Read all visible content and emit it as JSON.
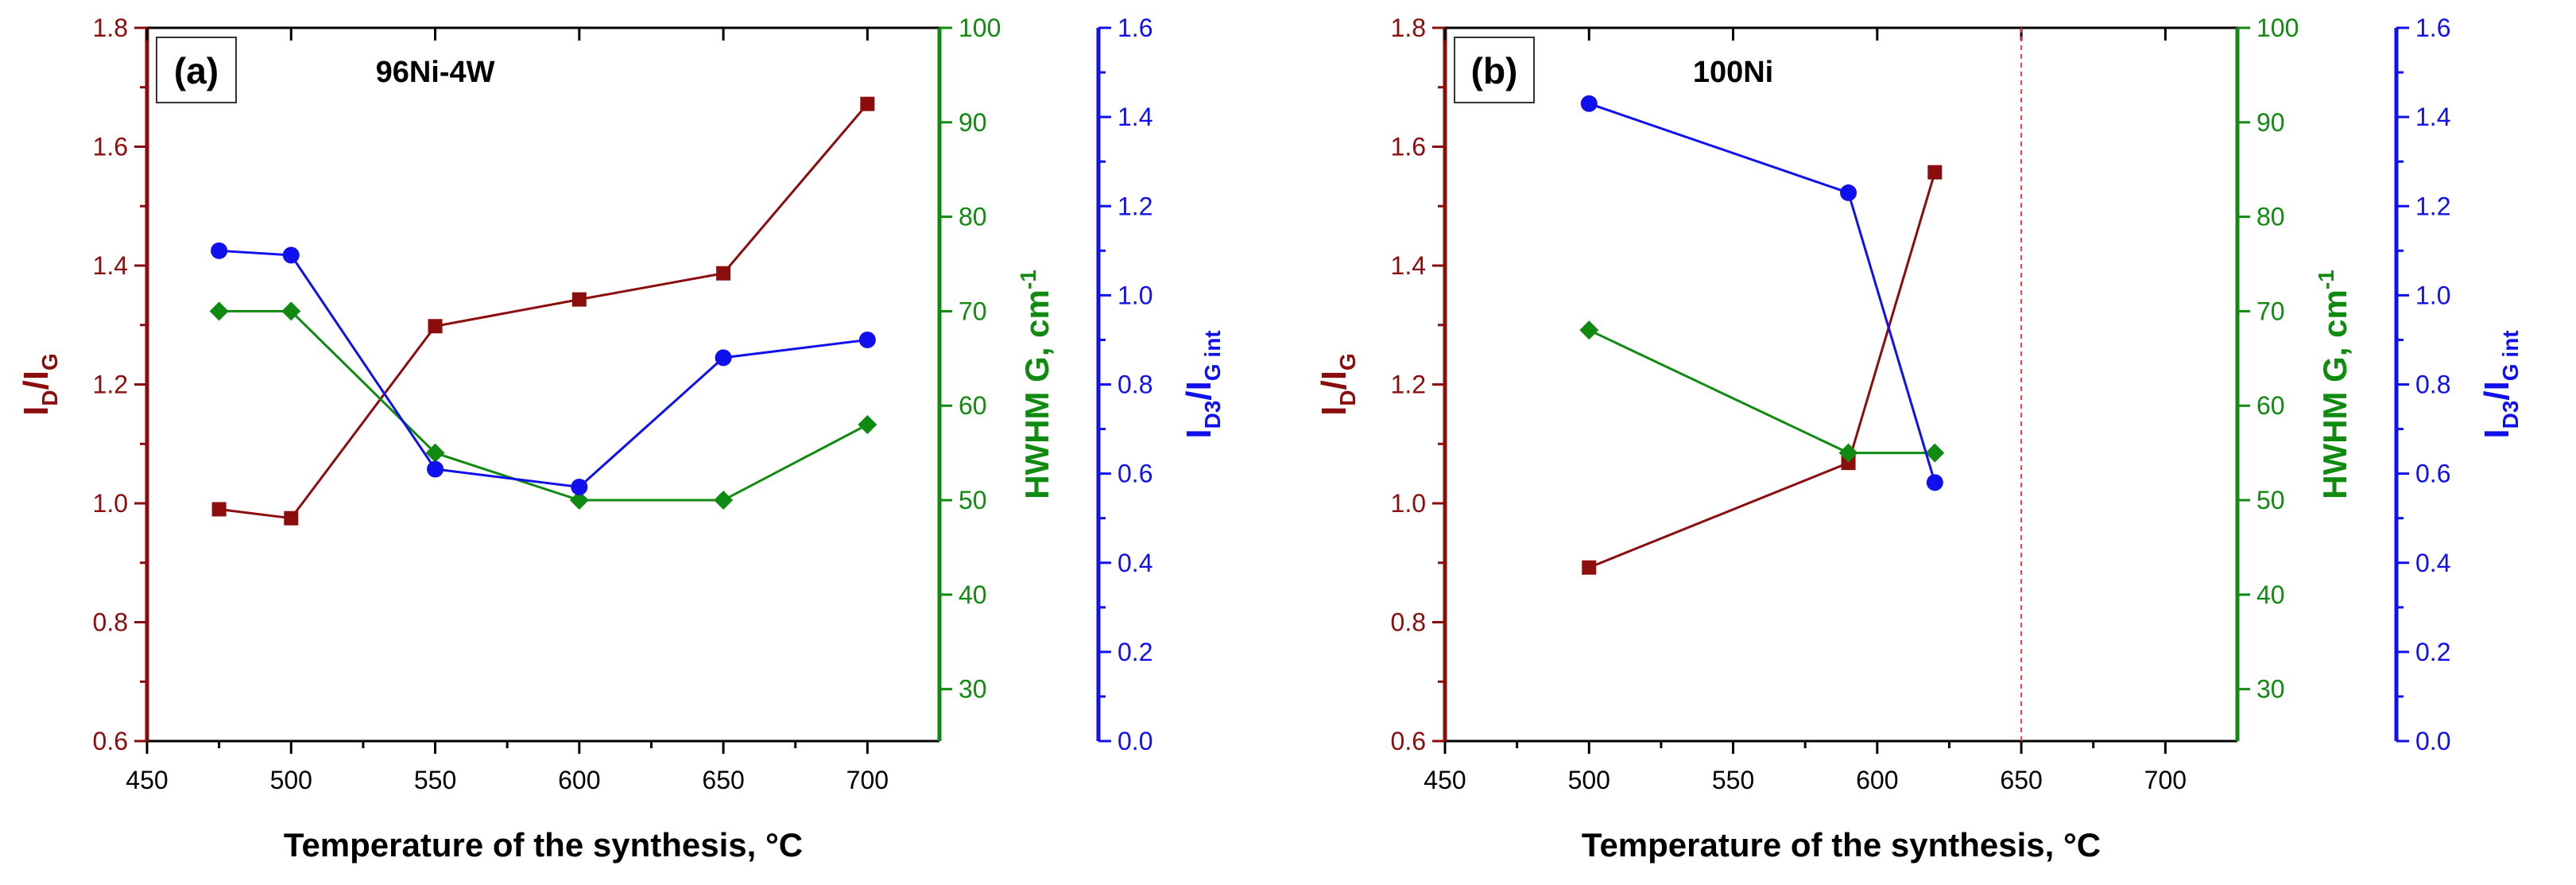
{
  "colors": {
    "id_ig": "#8b0d0d",
    "hwhm": "#118a11",
    "id3": "#1010ee",
    "axis": "#000000",
    "frame": "#8b0d0d",
    "vline": "#e84040"
  },
  "chart_data": [
    {
      "type": "line",
      "panel_label": "(a)",
      "title": "96Ni-4W",
      "xlabel": "Temperature of the synthesis, °C",
      "xlim": [
        450,
        725
      ],
      "xticks": [
        "450",
        "500",
        "550",
        "600",
        "650",
        "700"
      ],
      "y1": {
        "label_main": "I",
        "label_sub1": "D",
        "label_mid": "/I",
        "label_sub2": "G",
        "ylim": [
          0.6,
          1.8
        ],
        "ticks": [
          "0.6",
          "0.8",
          "1.0",
          "1.2",
          "1.4",
          "1.6",
          "1.8"
        ]
      },
      "y2": {
        "label": "HWHM G, cm",
        "label_sup": "-1",
        "ylim": [
          24.5,
          100
        ],
        "ticks": [
          "30",
          "40",
          "50",
          "60",
          "70",
          "80",
          "90",
          "100"
        ]
      },
      "y3": {
        "label_main": "I",
        "label_sub1": "D3",
        "label_mid": "/I",
        "label_sub2": "G int",
        "ylim": [
          0,
          1.6
        ],
        "ticks": [
          "0.0",
          "0.2",
          "0.4",
          "0.6",
          "0.8",
          "1.0",
          "1.2",
          "1.4",
          "1.6"
        ]
      },
      "series": [
        {
          "name": "ID/IG",
          "axis": "y1",
          "marker": "square",
          "x": [
            475,
            500,
            550,
            600,
            650,
            700
          ],
          "values": [
            0.99,
            0.975,
            1.298,
            1.343,
            1.387,
            1.672
          ]
        },
        {
          "name": "HWHM G",
          "axis": "y2",
          "marker": "diamond",
          "x": [
            475,
            500,
            550,
            600,
            650,
            700
          ],
          "values": [
            70,
            70,
            55,
            50,
            50,
            58
          ]
        },
        {
          "name": "ID3/IG int",
          "axis": "y3",
          "marker": "circle",
          "x": [
            475,
            500,
            550,
            600,
            650,
            700
          ],
          "values": [
            1.1,
            1.09,
            0.61,
            0.57,
            0.86,
            0.9
          ]
        }
      ],
      "vline": null
    },
    {
      "type": "line",
      "panel_label": "(b)",
      "title": "100Ni",
      "xlabel": "Temperature of the synthesis, °C",
      "xlim": [
        450,
        725
      ],
      "xticks": [
        "450",
        "500",
        "550",
        "600",
        "650",
        "700"
      ],
      "y1": {
        "label_main": "I",
        "label_sub1": "D",
        "label_mid": "/I",
        "label_sub2": "G",
        "ylim": [
          0.6,
          1.8
        ],
        "ticks": [
          "0.6",
          "0.8",
          "1.0",
          "1.2",
          "1.4",
          "1.6",
          "1.8"
        ]
      },
      "y2": {
        "label": "HWHM G, cm",
        "label_sup": "-1",
        "ylim": [
          24.5,
          100
        ],
        "ticks": [
          "30",
          "40",
          "50",
          "60",
          "70",
          "80",
          "90",
          "100"
        ]
      },
      "y3": {
        "label_main": "I",
        "label_sub1": "D3",
        "label_mid": "/I",
        "label_sub2": "G int",
        "ylim": [
          0,
          1.6
        ],
        "ticks": [
          "0.0",
          "0.2",
          "0.4",
          "0.6",
          "0.8",
          "1.0",
          "1.2",
          "1.4",
          "1.6"
        ]
      },
      "series": [
        {
          "name": "ID/IG",
          "axis": "y1",
          "marker": "square",
          "x": [
            500,
            590,
            620
          ],
          "values": [
            0.892,
            1.068,
            1.557
          ]
        },
        {
          "name": "HWHM G",
          "axis": "y2",
          "marker": "diamond",
          "x": [
            500,
            590,
            620
          ],
          "values": [
            68,
            55,
            55
          ]
        },
        {
          "name": "ID3/IG int",
          "axis": "y3",
          "marker": "circle",
          "x": [
            500,
            590,
            620
          ],
          "values": [
            1.43,
            1.23,
            0.58
          ]
        }
      ],
      "vline": 650
    }
  ]
}
